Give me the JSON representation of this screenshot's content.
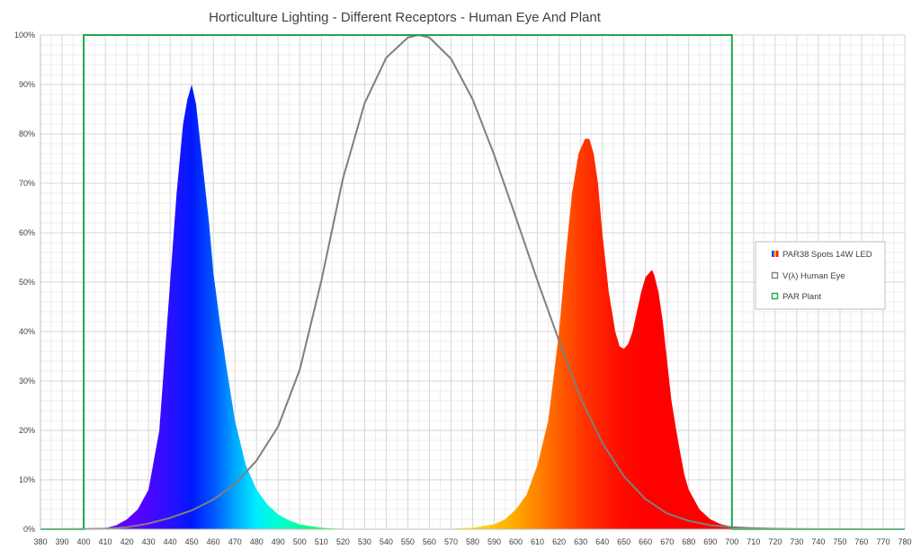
{
  "chart_data": {
    "type": "area",
    "title": "Horticulture Lighting - Different Receptors - Human Eye And Plant",
    "xlabel": "",
    "ylabel": "",
    "xlim": [
      380,
      780
    ],
    "ylim": [
      0,
      100
    ],
    "x_ticks": [
      380,
      390,
      400,
      410,
      420,
      430,
      440,
      450,
      460,
      470,
      480,
      490,
      500,
      510,
      520,
      530,
      540,
      550,
      560,
      570,
      580,
      590,
      600,
      610,
      620,
      630,
      640,
      650,
      660,
      670,
      680,
      690,
      700,
      710,
      720,
      730,
      740,
      750,
      760,
      770,
      780
    ],
    "y_ticks": [
      0,
      10,
      20,
      30,
      40,
      50,
      60,
      70,
      80,
      90,
      100
    ],
    "y_tick_suffix": "%",
    "grid": true,
    "legend_position": "right",
    "series": [
      {
        "name": "PAR38 Spots 14W LED",
        "style": "spectrum-fill",
        "x": [
          400,
          410,
          415,
          420,
          425,
          430,
          435,
          440,
          443,
          446,
          448,
          450,
          452,
          455,
          458,
          460,
          463,
          466,
          470,
          475,
          480,
          485,
          490,
          495,
          500,
          505,
          510,
          515,
          520,
          530,
          540,
          550,
          560,
          570,
          580,
          590,
          595,
          600,
          605,
          610,
          615,
          620,
          623,
          626,
          629,
          632,
          634,
          636,
          638,
          640,
          643,
          646,
          648,
          650,
          652,
          654,
          656,
          658,
          660,
          662,
          663,
          664,
          666,
          668,
          670,
          672,
          675,
          678,
          680,
          685,
          690,
          695,
          700,
          710,
          720
        ],
        "y": [
          0,
          0.2,
          0.8,
          2,
          4,
          8,
          20,
          50,
          68,
          82,
          87,
          90,
          86,
          74,
          62,
          52,
          42,
          33,
          22,
          13,
          8,
          5,
          3,
          1.8,
          1,
          0.6,
          0.3,
          0.15,
          0.1,
          0.05,
          0.05,
          0.05,
          0.05,
          0.1,
          0.3,
          1,
          2,
          4,
          7,
          13,
          22,
          40,
          55,
          68,
          76,
          79,
          79,
          76,
          70,
          60,
          48,
          40,
          37,
          36.5,
          37.5,
          40,
          44,
          48,
          51,
          52,
          52.5,
          51.5,
          48,
          42,
          34,
          26,
          18,
          11,
          8,
          4,
          2,
          1,
          0.5,
          0.1,
          0
        ]
      },
      {
        "name": "V(λ) Human Eye",
        "style": "line",
        "color": "#7f7f7f",
        "x": [
          380,
          390,
          400,
          410,
          420,
          430,
          440,
          450,
          460,
          470,
          480,
          490,
          500,
          510,
          520,
          530,
          540,
          550,
          555,
          560,
          570,
          580,
          590,
          600,
          610,
          620,
          630,
          640,
          650,
          660,
          670,
          680,
          690,
          700,
          710,
          720,
          730,
          740,
          750,
          760,
          770,
          780
        ],
        "y": [
          0.004,
          0.012,
          0.04,
          0.12,
          0.4,
          1.16,
          2.3,
          3.8,
          6,
          9.1,
          13.9,
          20.8,
          32.3,
          50.3,
          71,
          86.2,
          95.4,
          99.5,
          100,
          99.5,
          95.2,
          87,
          75.7,
          63.1,
          50.3,
          38.1,
          26.5,
          17.5,
          10.7,
          6.1,
          3.2,
          1.7,
          0.82,
          0.41,
          0.21,
          0.1,
          0.05,
          0.025,
          0.012,
          0.006,
          0.003,
          0.0015
        ]
      },
      {
        "name": "PAR Plant",
        "style": "line",
        "color": "#1fa84a",
        "x": [
          380,
          400,
          400,
          700,
          700,
          780
        ],
        "y": [
          0,
          0,
          100,
          100,
          0,
          0
        ]
      }
    ]
  }
}
